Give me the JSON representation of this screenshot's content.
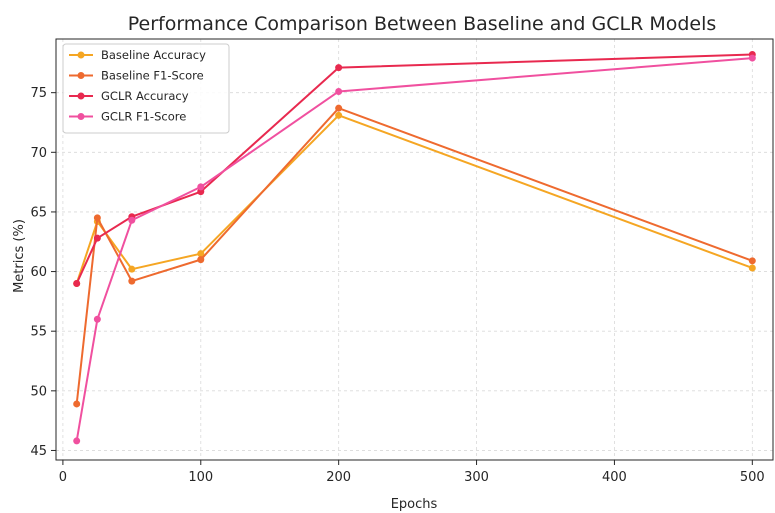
{
  "chart_data": {
    "type": "line",
    "title": "Performance Comparison Between Baseline and GCLR Models",
    "xlabel": "Epochs",
    "ylabel": "Metrics (%)",
    "xlim": [
      -5,
      515
    ],
    "ylim": [
      44.2,
      79.5
    ],
    "xticks": [
      0,
      100,
      200,
      300,
      400,
      500
    ],
    "yticks": [
      45,
      50,
      55,
      60,
      65,
      70,
      75
    ],
    "grid": true,
    "legend_position": "top-left",
    "x": [
      10,
      25,
      50,
      100,
      200,
      500
    ],
    "series": [
      {
        "name": "Baseline Accuracy",
        "color": "#f5a623",
        "values": [
          59.0,
          64.2,
          60.2,
          61.5,
          73.1,
          60.3
        ]
      },
      {
        "name": "Baseline F1-Score",
        "color": "#ee6a2f",
        "values": [
          48.9,
          64.5,
          59.2,
          61.0,
          73.7,
          60.9
        ]
      },
      {
        "name": "GCLR Accuracy",
        "color": "#e8294f",
        "values": [
          59.0,
          62.8,
          64.6,
          66.7,
          77.1,
          78.2
        ]
      },
      {
        "name": "GCLR F1-Score",
        "color": "#f0509f",
        "values": [
          45.8,
          56.0,
          64.3,
          67.1,
          75.1,
          77.9
        ]
      }
    ]
  }
}
